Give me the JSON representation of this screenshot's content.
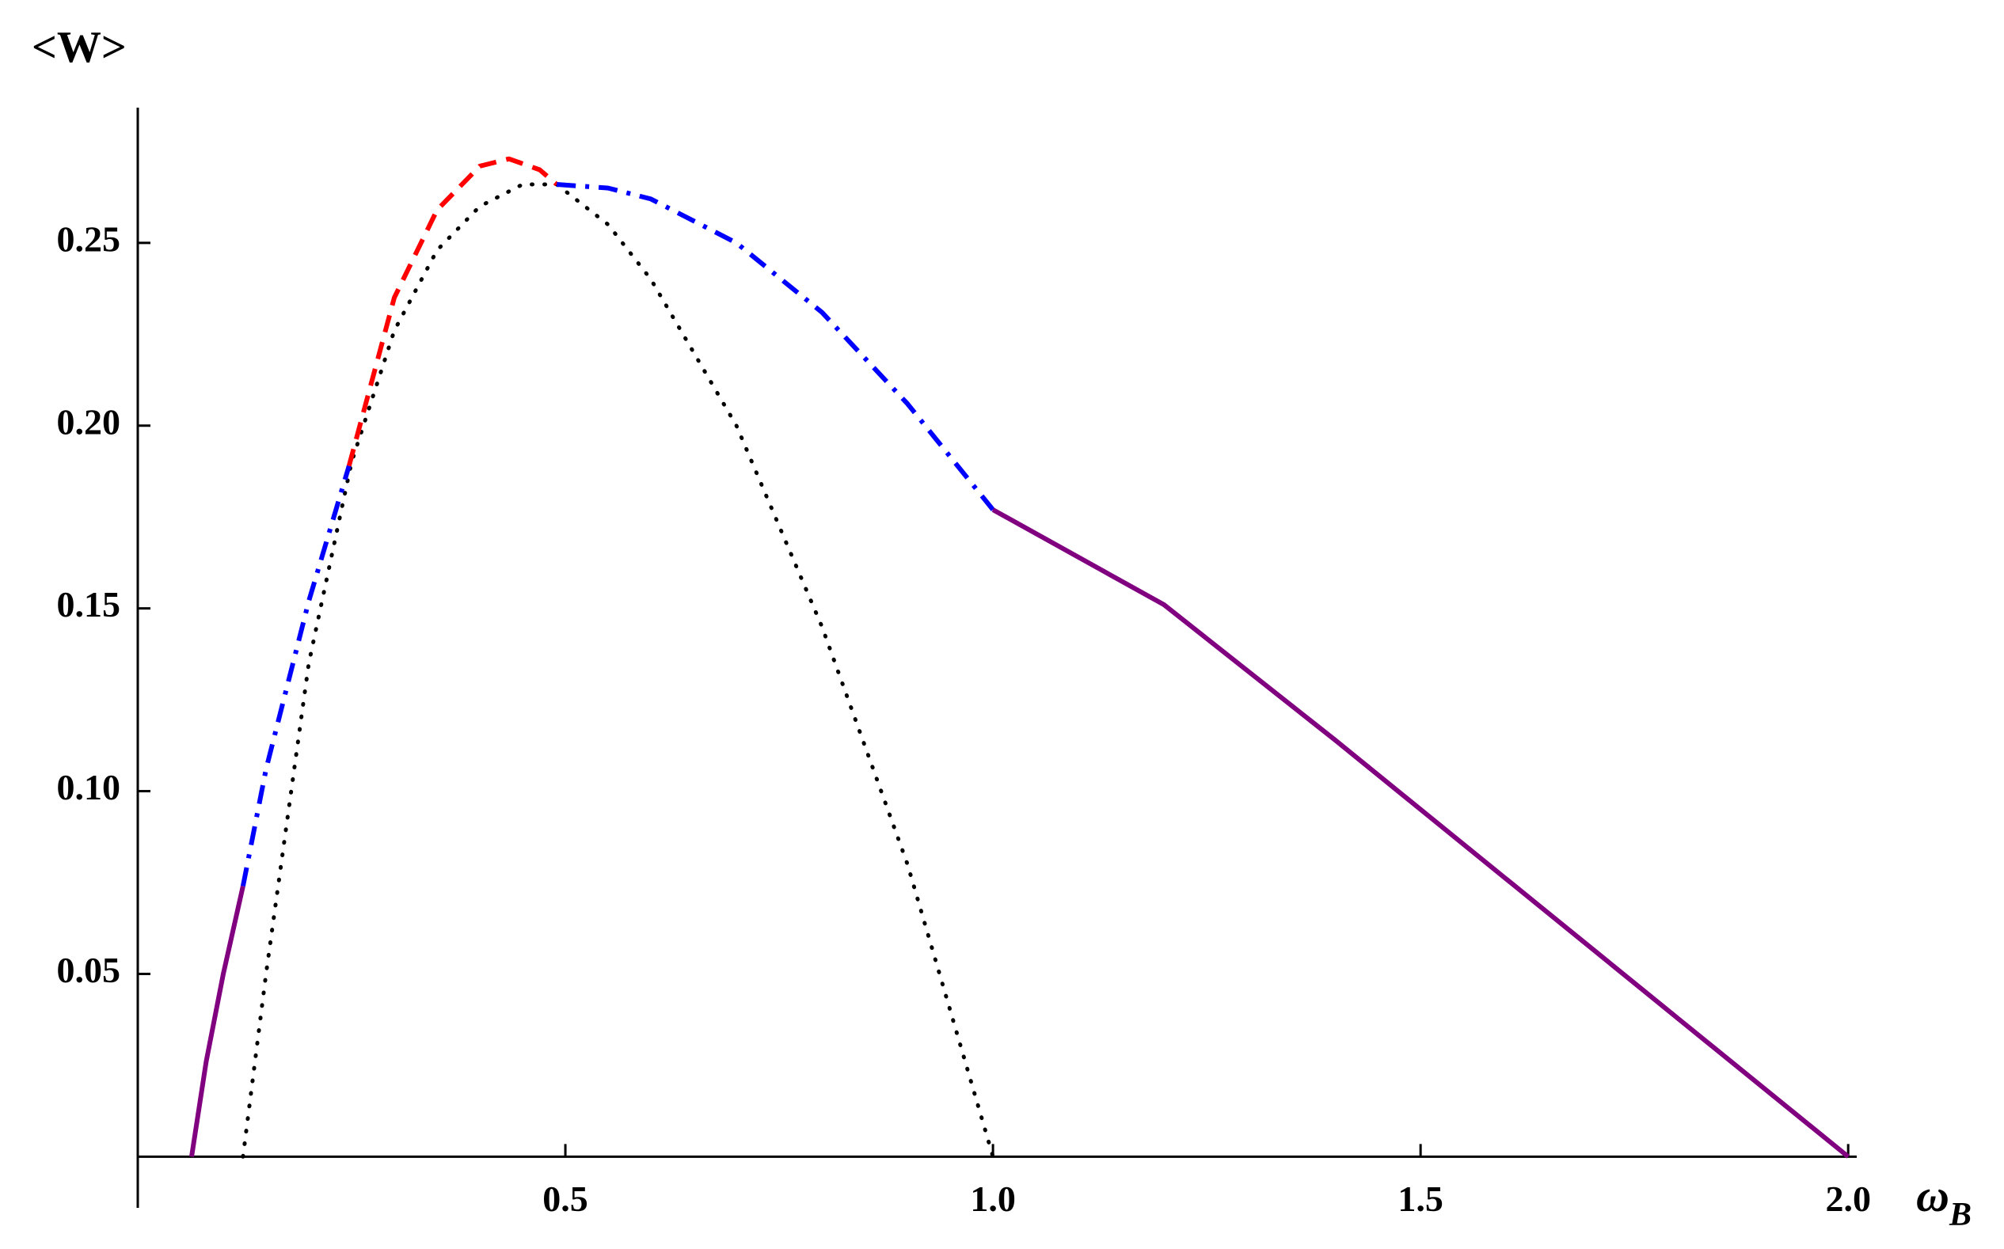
{
  "chart_data": {
    "type": "line",
    "y_label": "<W>",
    "x_label": "ω",
    "x_label_sub": "B",
    "xlim": [
      0,
      2.01
    ],
    "ylim": [
      -0.014,
      0.287
    ],
    "xticks": [
      0.5,
      {
        "value": 1.0,
        "label": "1.0"
      },
      1.5,
      {
        "value": 2.0,
        "label": "2.0"
      }
    ],
    "yticks": [
      0.05,
      {
        "value": 0.1,
        "label": "0.10"
      },
      0.15,
      {
        "value": 0.2,
        "label": "0.20"
      },
      0.25
    ],
    "grid": false,
    "series": [
      {
        "color": "#000000",
        "style": "dotted",
        "x": [
          0.123,
          0.15,
          0.2,
          0.25,
          0.3,
          0.35,
          0.4,
          0.45,
          0.49,
          0.55,
          0.6,
          0.7,
          0.8,
          0.9,
          1.0
        ],
        "values": [
          0,
          0.05,
          0.135,
          0.19,
          0.226,
          0.248,
          0.26,
          0.266,
          0.266,
          0.255,
          0.24,
          0.2,
          0.145,
          0.08,
          0
        ]
      },
      {
        "color": "#800080",
        "style": "solid",
        "x": [
          0.063,
          0.08,
          0.1,
          0.123
        ],
        "values": [
          0,
          0.026,
          0.05,
          0.074
        ]
      },
      {
        "color": "#0000ff",
        "style": "dotdashed",
        "x": [
          0.123,
          0.15,
          0.2,
          0.247
        ],
        "values": [
          0.074,
          0.106,
          0.152,
          0.189
        ]
      },
      {
        "color": "#ff0000",
        "style": "dashed",
        "x": [
          0.247,
          0.3,
          0.35,
          0.4,
          0.434,
          0.47,
          0.49
        ],
        "values": [
          0.189,
          0.235,
          0.259,
          0.271,
          0.273,
          0.27,
          0.266
        ]
      },
      {
        "color": "#0000ff",
        "style": "dotdashed",
        "x": [
          0.49,
          0.55,
          0.6,
          0.7,
          0.8,
          0.9,
          1.0
        ],
        "values": [
          0.266,
          0.265,
          0.262,
          0.25,
          0.231,
          0.206,
          0.177
        ]
      },
      {
        "color": "#800080",
        "style": "solid",
        "x": [
          1.0,
          1.2,
          1.4,
          1.6,
          1.8,
          2.0
        ],
        "values": [
          0.177,
          0.151,
          0.114,
          0.076,
          0.038,
          0
        ]
      }
    ]
  }
}
